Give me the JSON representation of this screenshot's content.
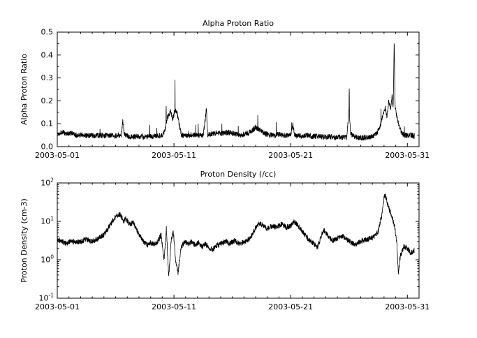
{
  "figure": {
    "background": "#ffffff",
    "line_color": "#000000",
    "text_color": "#000000"
  },
  "chart_data": [
    {
      "id": "alpha-proton-ratio",
      "type": "line",
      "title": "Alpha Proton Ratio",
      "ylabel": "Alpha Proton Ratio",
      "xlabel": "",
      "x_tick_labels": [
        "2003-05-01",
        "2003-05-11",
        "2003-05-21",
        "2003-05-31"
      ],
      "x_tick_positions": [
        1,
        11,
        21,
        31
      ],
      "xlim": [
        1,
        32
      ],
      "ylim": [
        0.0,
        0.5
      ],
      "y_scale": "linear",
      "y_tick_values": [
        0.0,
        0.1,
        0.2,
        0.3,
        0.4,
        0.5
      ],
      "y_tick_labels": [
        "0.0",
        "0.1",
        "0.2",
        "0.3",
        "0.4",
        "0.5"
      ],
      "y_minor_step": 0.05,
      "grid": false,
      "legend": null,
      "n_points": 2400,
      "data_range": [
        1.0,
        31.6
      ],
      "noise": {
        "type": "uniform",
        "amplitude": 0.012,
        "seed": 1337,
        "spike_prob": 0.006,
        "spike_gain": 1.7
      },
      "series": [
        {
          "name": "alpha_proton_ratio",
          "keypoints": [
            [
              1.0,
              0.055
            ],
            [
              1.4,
              0.065
            ],
            [
              1.8,
              0.055
            ],
            [
              2.2,
              0.058
            ],
            [
              2.6,
              0.05
            ],
            [
              3.0,
              0.052
            ],
            [
              3.4,
              0.048
            ],
            [
              3.8,
              0.05
            ],
            [
              4.2,
              0.046
            ],
            [
              4.6,
              0.05
            ],
            [
              5.0,
              0.048
            ],
            [
              5.4,
              0.05
            ],
            [
              5.8,
              0.046
            ],
            [
              6.2,
              0.048
            ],
            [
              6.5,
              0.05
            ],
            [
              6.62,
              0.115
            ],
            [
              6.75,
              0.052
            ],
            [
              7.1,
              0.046
            ],
            [
              7.5,
              0.043
            ],
            [
              8.0,
              0.046
            ],
            [
              8.5,
              0.042
            ],
            [
              9.0,
              0.045
            ],
            [
              9.5,
              0.048
            ],
            [
              10.0,
              0.05
            ],
            [
              10.2,
              0.07
            ],
            [
              10.45,
              0.13
            ],
            [
              10.7,
              0.155
            ],
            [
              10.9,
              0.12
            ],
            [
              11.1,
              0.165
            ],
            [
              11.3,
              0.14
            ],
            [
              11.5,
              0.08
            ],
            [
              11.65,
              0.05
            ],
            [
              12.0,
              0.048
            ],
            [
              12.5,
              0.052
            ],
            [
              13.0,
              0.05
            ],
            [
              13.5,
              0.048
            ],
            [
              13.78,
              0.165
            ],
            [
              13.88,
              0.052
            ],
            [
              14.2,
              0.055
            ],
            [
              14.7,
              0.06
            ],
            [
              15.2,
              0.058
            ],
            [
              15.7,
              0.062
            ],
            [
              16.2,
              0.055
            ],
            [
              16.7,
              0.052
            ],
            [
              17.2,
              0.055
            ],
            [
              17.6,
              0.065
            ],
            [
              18.0,
              0.085
            ],
            [
              18.3,
              0.075
            ],
            [
              18.7,
              0.06
            ],
            [
              19.1,
              0.052
            ],
            [
              19.6,
              0.05
            ],
            [
              20.1,
              0.055
            ],
            [
              20.5,
              0.048
            ],
            [
              21.0,
              0.052
            ],
            [
              21.2,
              0.095
            ],
            [
              21.35,
              0.05
            ],
            [
              21.8,
              0.046
            ],
            [
              22.3,
              0.05
            ],
            [
              22.8,
              0.044
            ],
            [
              23.3,
              0.046
            ],
            [
              23.8,
              0.042
            ],
            [
              24.3,
              0.044
            ],
            [
              24.8,
              0.04
            ],
            [
              25.3,
              0.042
            ],
            [
              25.8,
              0.04
            ],
            [
              26.0,
              0.16
            ],
            [
              26.15,
              0.055
            ],
            [
              26.6,
              0.042
            ],
            [
              27.0,
              0.038
            ],
            [
              27.5,
              0.04
            ],
            [
              28.0,
              0.045
            ],
            [
              28.4,
              0.06
            ],
            [
              28.7,
              0.095
            ],
            [
              28.9,
              0.14
            ],
            [
              29.1,
              0.175
            ],
            [
              29.25,
              0.125
            ],
            [
              29.4,
              0.205
            ],
            [
              29.55,
              0.16
            ],
            [
              29.7,
              0.225
            ],
            [
              29.78,
              0.16
            ],
            [
              29.87,
              0.46
            ],
            [
              29.95,
              0.18
            ],
            [
              30.1,
              0.13
            ],
            [
              30.3,
              0.085
            ],
            [
              30.6,
              0.055
            ],
            [
              30.9,
              0.048
            ],
            [
              31.2,
              0.052
            ],
            [
              31.6,
              0.046
            ]
          ]
        }
      ]
    },
    {
      "id": "proton-density",
      "type": "line",
      "title": "Proton Density (/cc)",
      "ylabel": "Proton Density (cm-3)",
      "xlabel": "",
      "x_tick_labels": [
        "2003-05-01",
        "2003-05-11",
        "2003-05-21",
        "2003-05-31"
      ],
      "x_tick_positions": [
        1,
        11,
        21,
        31
      ],
      "xlim": [
        1,
        32
      ],
      "ylim": [
        0.1,
        100
      ],
      "y_scale": "log",
      "y_tick_values": [
        0.1,
        1,
        10,
        100
      ],
      "y_tick_labels": [
        {
          "mantissa": "10",
          "exponent": "-1"
        },
        {
          "mantissa": "10",
          "exponent": "0"
        },
        {
          "mantissa": "10",
          "exponent": "1"
        },
        {
          "mantissa": "10",
          "exponent": "2"
        }
      ],
      "grid": false,
      "legend": null,
      "n_points": 2400,
      "data_range": [
        1.0,
        31.6
      ],
      "noise": {
        "type": "uniform_log",
        "amplitude": 0.07,
        "seed": 2003
      },
      "series": [
        {
          "name": "proton_density",
          "keypoints": [
            [
              1.0,
              3.5
            ],
            [
              1.4,
              3.0
            ],
            [
              1.8,
              2.6
            ],
            [
              2.2,
              3.2
            ],
            [
              2.6,
              2.8
            ],
            [
              3.0,
              3.0
            ],
            [
              3.5,
              3.4
            ],
            [
              4.0,
              3.0
            ],
            [
              4.5,
              3.6
            ],
            [
              5.0,
              4.5
            ],
            [
              5.4,
              7.0
            ],
            [
              5.8,
              11.0
            ],
            [
              6.1,
              14.0
            ],
            [
              6.4,
              15.0
            ],
            [
              6.7,
              10.0
            ],
            [
              6.9,
              12.0
            ],
            [
              7.2,
              8.0
            ],
            [
              7.5,
              9.5
            ],
            [
              7.8,
              6.0
            ],
            [
              8.1,
              4.0
            ],
            [
              8.4,
              3.0
            ],
            [
              8.7,
              2.4
            ],
            [
              9.0,
              2.8
            ],
            [
              9.3,
              2.5
            ],
            [
              9.6,
              3.0
            ],
            [
              9.9,
              4.5
            ],
            [
              10.15,
              1.0
            ],
            [
              10.35,
              6.5
            ],
            [
              10.55,
              0.35
            ],
            [
              10.75,
              3.0
            ],
            [
              10.95,
              5.5
            ],
            [
              11.15,
              0.9
            ],
            [
              11.35,
              0.45
            ],
            [
              11.6,
              2.0
            ],
            [
              11.9,
              3.0
            ],
            [
              12.2,
              2.6
            ],
            [
              12.5,
              3.0
            ],
            [
              12.8,
              2.4
            ],
            [
              13.1,
              2.8
            ],
            [
              13.4,
              2.2
            ],
            [
              13.7,
              2.6
            ],
            [
              14.0,
              2.1
            ],
            [
              14.3,
              1.8
            ],
            [
              14.6,
              2.3
            ],
            [
              15.0,
              2.6
            ],
            [
              15.4,
              3.0
            ],
            [
              15.8,
              2.7
            ],
            [
              16.2,
              3.1
            ],
            [
              16.6,
              2.6
            ],
            [
              17.0,
              2.9
            ],
            [
              17.4,
              3.3
            ],
            [
              17.7,
              4.5
            ],
            [
              18.0,
              7.0
            ],
            [
              18.3,
              9.0
            ],
            [
              18.6,
              8.0
            ],
            [
              19.0,
              6.5
            ],
            [
              19.4,
              7.5
            ],
            [
              19.8,
              7.0
            ],
            [
              20.2,
              8.5
            ],
            [
              20.6,
              7.0
            ],
            [
              21.0,
              7.5
            ],
            [
              21.3,
              10.0
            ],
            [
              21.6,
              8.0
            ],
            [
              22.0,
              5.5
            ],
            [
              22.5,
              3.5
            ],
            [
              23.0,
              2.6
            ],
            [
              23.3,
              2.1
            ],
            [
              23.8,
              6.0
            ],
            [
              24.2,
              4.2
            ],
            [
              24.6,
              3.2
            ],
            [
              25.0,
              3.6
            ],
            [
              25.4,
              4.2
            ],
            [
              25.8,
              3.4
            ],
            [
              26.2,
              2.8
            ],
            [
              26.6,
              2.5
            ],
            [
              27.0,
              3.0
            ],
            [
              27.4,
              3.3
            ],
            [
              27.8,
              3.6
            ],
            [
              28.2,
              4.2
            ],
            [
              28.5,
              5.5
            ],
            [
              28.8,
              14.0
            ],
            [
              29.0,
              40.0
            ],
            [
              29.1,
              50.0
            ],
            [
              29.3,
              28.0
            ],
            [
              29.6,
              15.0
            ],
            [
              29.9,
              8.0
            ],
            [
              30.1,
              2.5
            ],
            [
              30.22,
              0.45
            ],
            [
              30.4,
              1.3
            ],
            [
              30.7,
              2.2
            ],
            [
              31.0,
              2.0
            ],
            [
              31.3,
              1.5
            ],
            [
              31.6,
              1.8
            ]
          ]
        }
      ]
    }
  ]
}
